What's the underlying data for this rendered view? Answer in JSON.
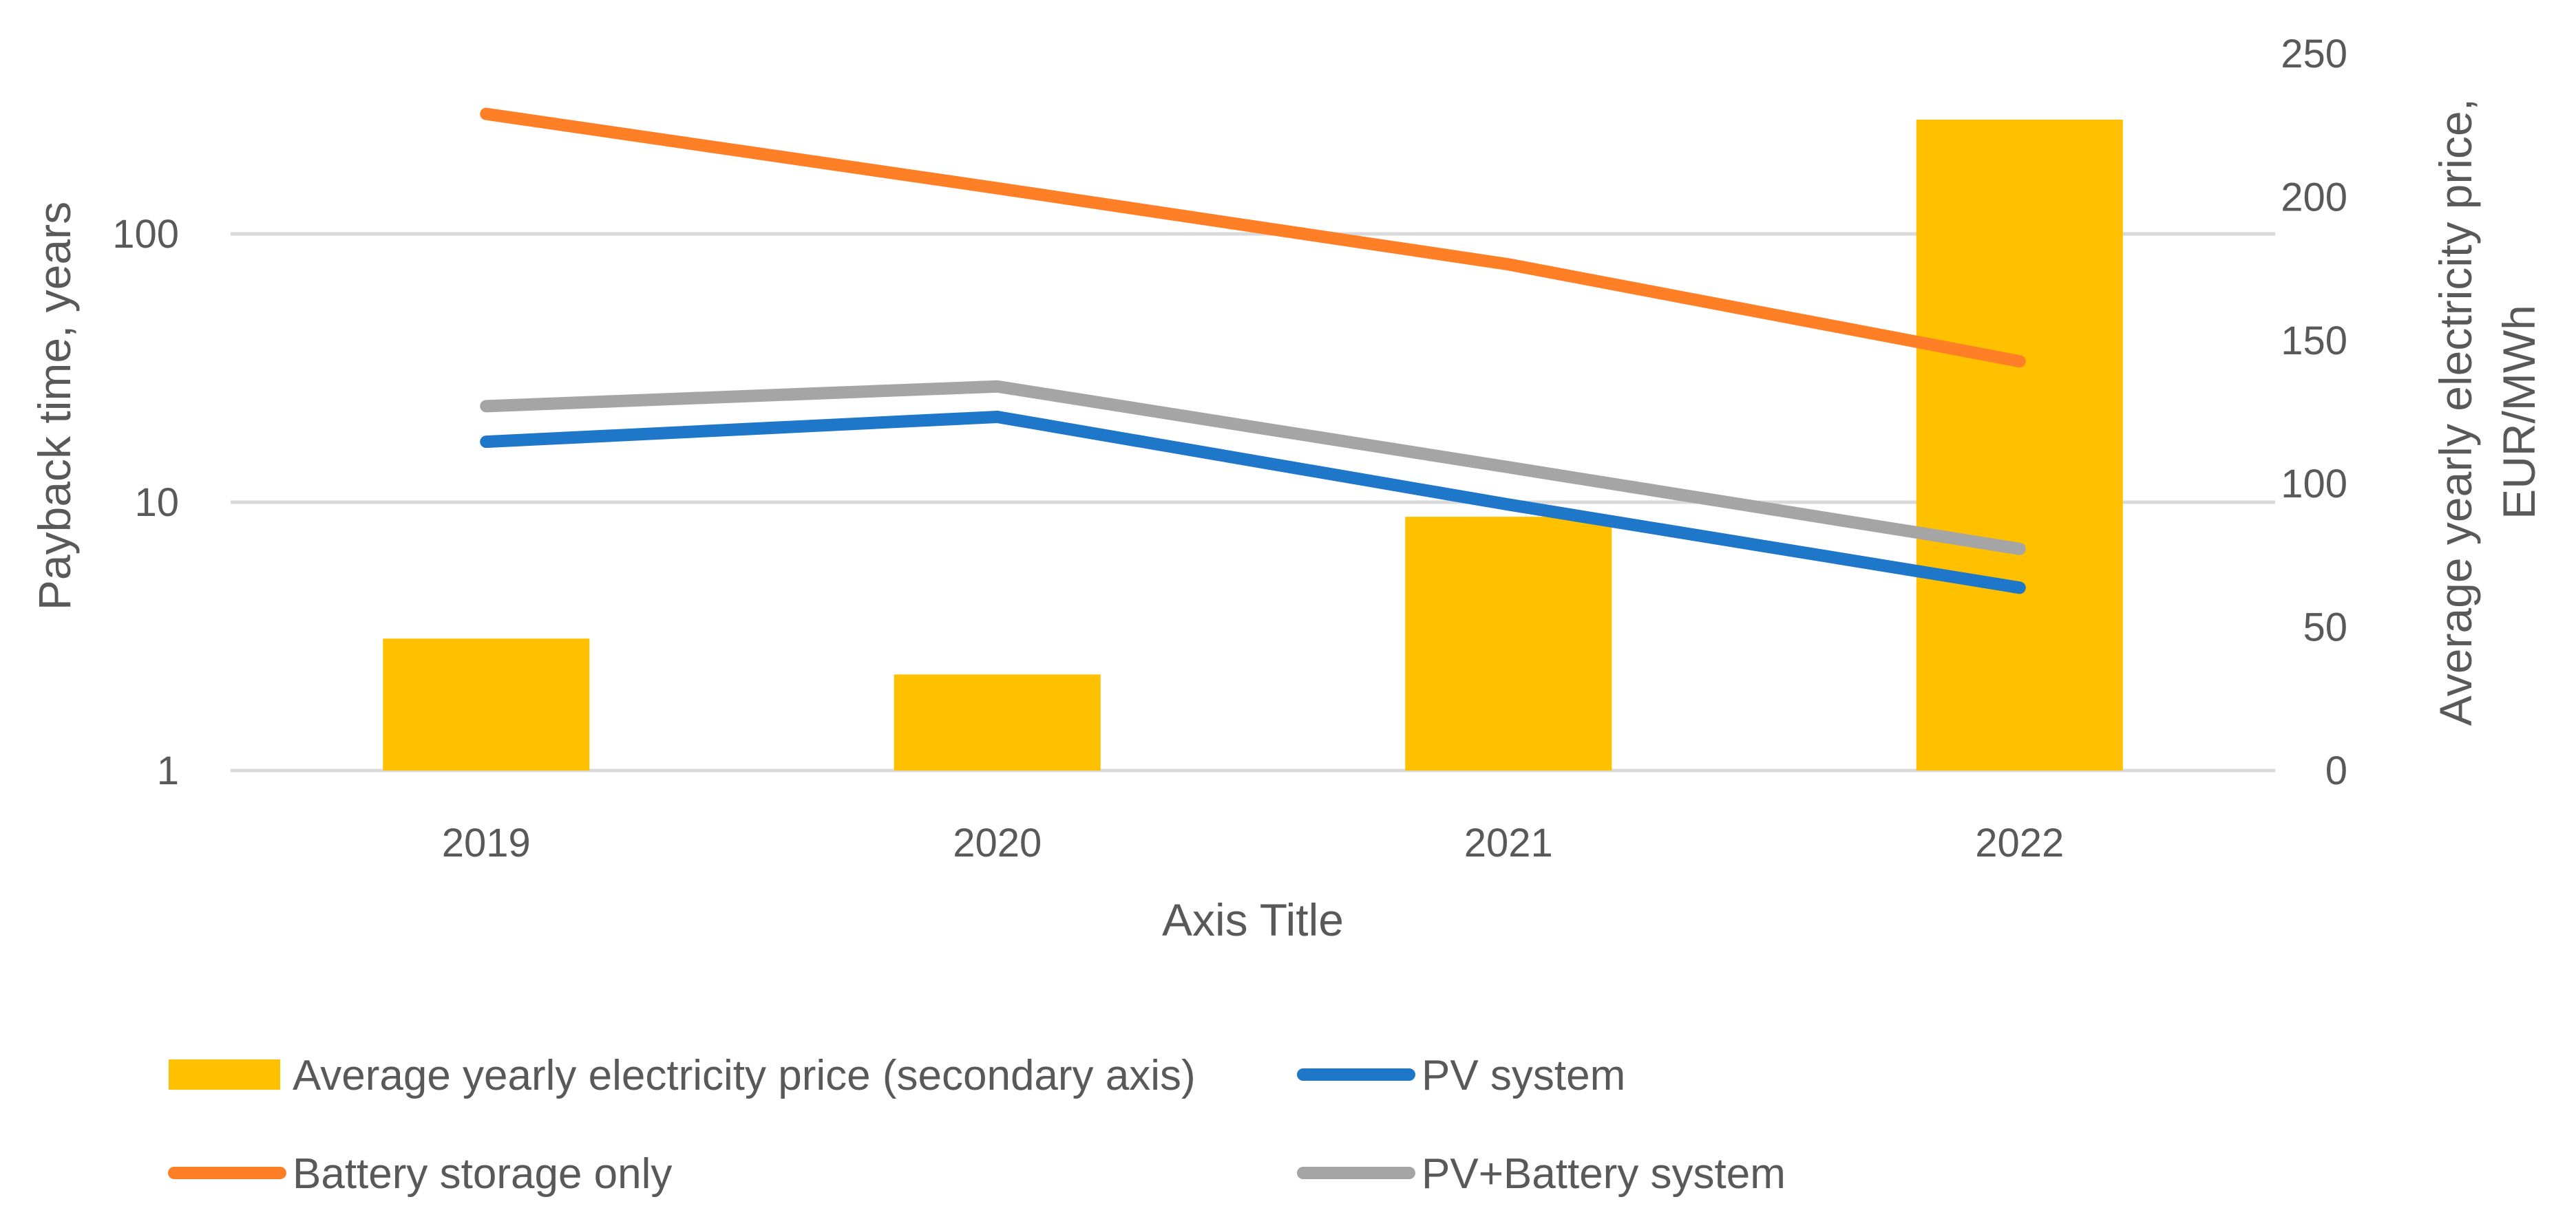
{
  "chart_data": {
    "type": "bar+line",
    "categories": [
      "2019",
      "2020",
      "2021",
      "2022"
    ],
    "xlabel": "Axis Title",
    "ylabel_left": "Payback time, years",
    "ylabel_right_lines": [
      "Average yearly electricity price,",
      "EUR/MWh"
    ],
    "y_left": {
      "scale": "log",
      "range": [
        1,
        316
      ],
      "ticks": [
        1,
        10,
        100
      ],
      "tick_labels": [
        "1",
        "10",
        "100"
      ]
    },
    "y_right": {
      "scale": "linear",
      "range": [
        0,
        250
      ],
      "ticks": [
        0,
        50,
        100,
        150,
        200,
        250
      ],
      "tick_labels": [
        "0",
        "50",
        "100",
        "150",
        "200",
        "250"
      ]
    },
    "gridlines": true,
    "legend_position": "bottom",
    "series": [
      {
        "name": "Average yearly electricity price (secondary axis)",
        "kind": "bar",
        "axis": "right",
        "color": "#FFC000",
        "values": [
          46,
          33.5,
          88.5,
          227
        ]
      },
      {
        "name": "PV system",
        "kind": "line",
        "axis": "left",
        "color": "#1F77C9",
        "values": [
          16.8,
          20.8,
          9.8,
          4.8
        ]
      },
      {
        "name": "Battery storage only",
        "kind": "line",
        "axis": "left",
        "color": "#FF7F27",
        "values": [
          280,
          148,
          77,
          33.5
        ]
      },
      {
        "name": "PV+Battery system",
        "kind": "line",
        "axis": "left",
        "color": "#A5A5A5",
        "values": [
          22.8,
          27,
          13.5,
          6.7
        ]
      }
    ],
    "legend": [
      "Average yearly electricity price (secondary axis)",
      "PV system",
      "Battery storage only",
      "PV+Battery system"
    ]
  },
  "colors": {
    "axis_text": "#595959",
    "gridline": "#D9D9D9"
  }
}
